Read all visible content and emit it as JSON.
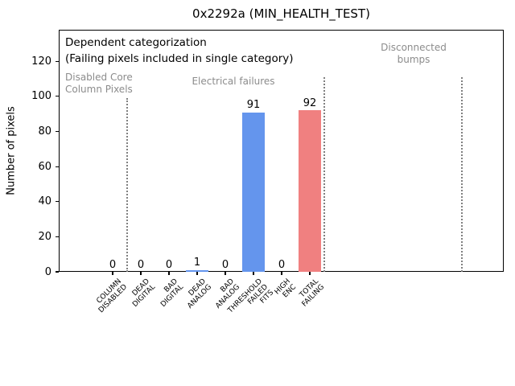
{
  "chart_data": {
    "type": "bar",
    "title": "0x2292a (MIN_HEALTH_TEST)",
    "xlabel": "",
    "ylabel": "Number of pixels",
    "ylim": [
      0,
      138
    ],
    "yticks": [
      0,
      20,
      40,
      60,
      80,
      100,
      120
    ],
    "grid": false,
    "legend": null,
    "categories": [
      "COLUMN DISABLED",
      "DEAD DIGITAL",
      "BAD DIGITAL",
      "DEAD ANALOG",
      "BAD ANALOG",
      "THRESHOLD FAILED FITS",
      "HIGH ENC",
      "TOTAL FAILING"
    ],
    "tick_labels": [
      "COLUMN\nDISABLED",
      "DEAD\nDIGITAL",
      "BAD\nDIGITAL",
      "DEAD\nANALOG",
      "BAD\nANALOG",
      "THRESHOLD\nFAILED\nFITS",
      "HIGH\nENC",
      "TOTAL\nFAILING"
    ],
    "values": [
      0,
      0,
      0,
      1,
      0,
      91,
      0,
      92
    ],
    "bar_colors": [
      "#6495ED",
      "#6495ED",
      "#6495ED",
      "#6495ED",
      "#6495ED",
      "#6495ED",
      "#6495ED",
      "#F08080"
    ],
    "annotations": {
      "header": [
        "Dependent categorization",
        "(Failing pixels included in single category)"
      ],
      "regions": [
        {
          "label": "Disabled Core\nColumn Pixels",
          "align": "left"
        },
        {
          "label": "Electrical failures",
          "align": "center"
        },
        {
          "label": "Disconnected\nbumps",
          "align": "center"
        }
      ],
      "separators": [
        {
          "x": 0.5,
          "ymax": 99
        },
        {
          "x": 7.5,
          "ymax": 111
        },
        {
          "x": 12.4,
          "ymax": 111
        }
      ]
    }
  },
  "colors": {
    "bar_blue": "#6495ED",
    "bar_red": "#F08080",
    "annotation_gray": "#8c8c8c",
    "separator_gray": "#808080"
  }
}
